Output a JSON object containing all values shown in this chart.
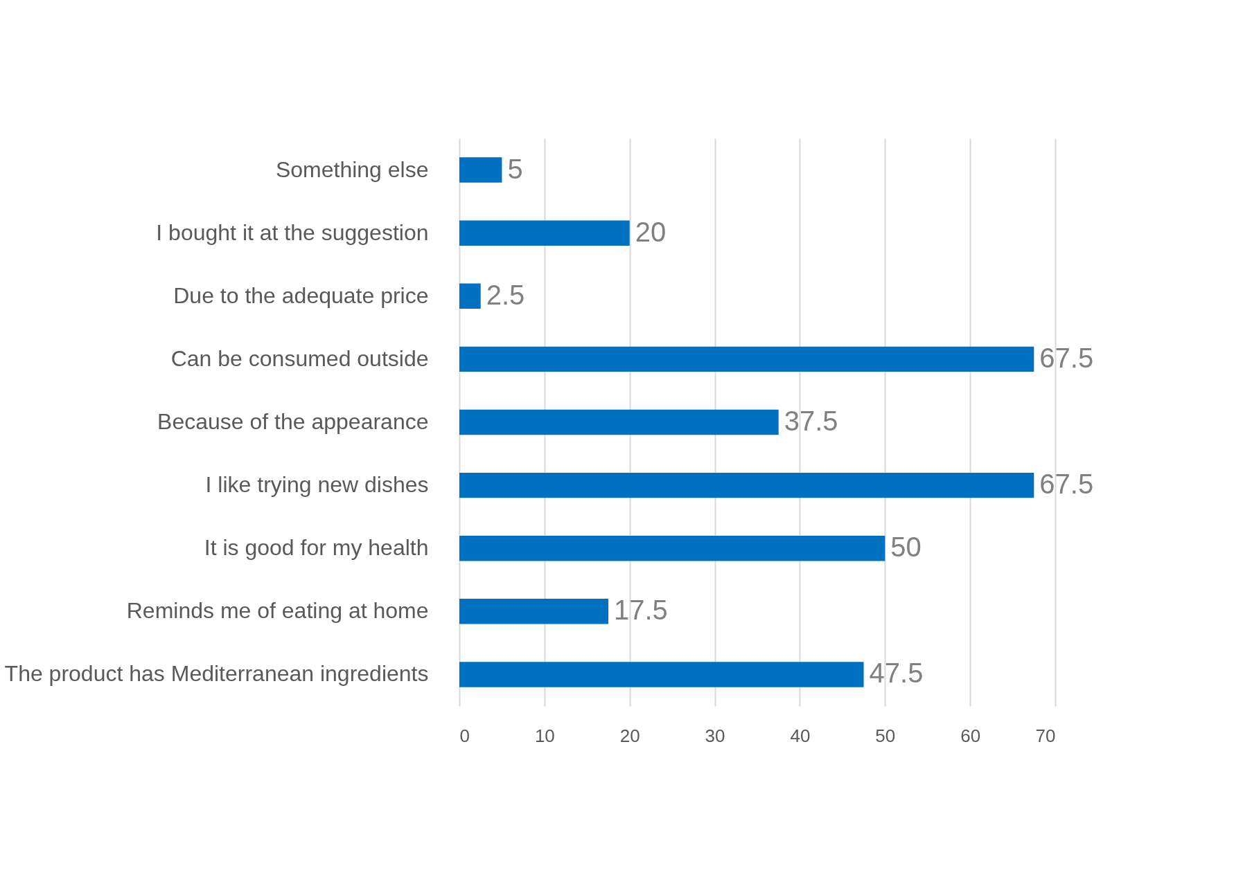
{
  "chart_data": {
    "type": "bar",
    "orientation": "horizontal",
    "categories": [
      "Something else",
      "I bought it at the suggestion",
      "Due to the adequate price",
      "Can be consumed outside",
      "Because of the appearance",
      "I like trying new dishes",
      "It is good for my health",
      "Reminds me of eating at home",
      "The product has Mediterranean ingredients"
    ],
    "values": [
      5,
      20,
      2.5,
      67.5,
      37.5,
      67.5,
      50,
      17.5,
      47.5
    ],
    "color": "#0070c0",
    "xlim": [
      0,
      70
    ],
    "xticks": [
      0,
      10,
      20,
      30,
      40,
      50,
      60,
      70
    ],
    "grid": "x",
    "data_labels": true
  }
}
